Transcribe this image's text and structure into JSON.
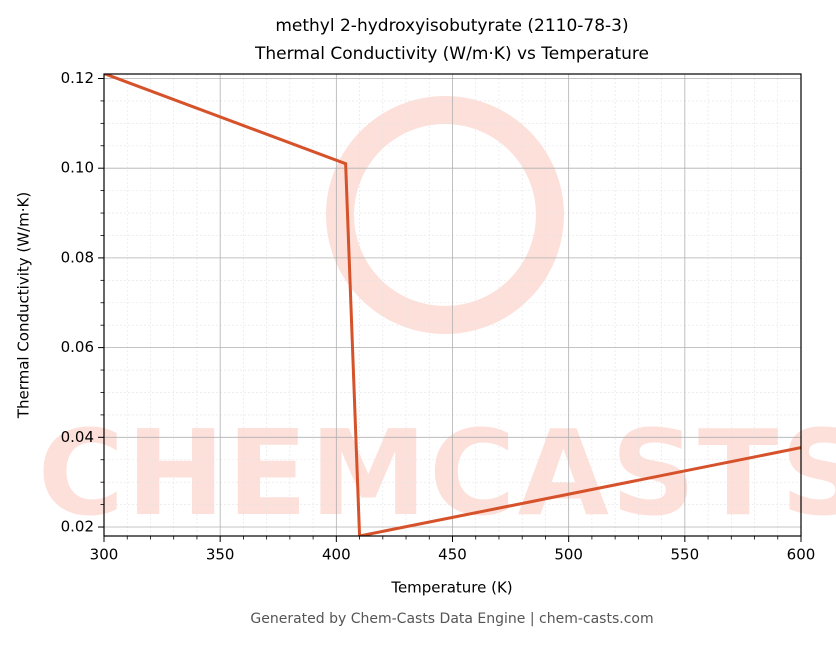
{
  "chart_data": {
    "type": "line",
    "title": [
      "methyl 2-hydroxyisobutyrate (2110-78-3)",
      "Thermal Conductivity (W/m·K) vs Temperature"
    ],
    "x_label": "Temperature (K)",
    "y_label": "Thermal Conductivity (W/m·K)",
    "watermark": "CHEMCASTS",
    "footer": "Generated by Chem-Casts Data Engine | chem-casts.com",
    "x": [
      300,
      404,
      410,
      600
    ],
    "series": [
      {
        "name": "Thermal Conductivity",
        "color": "#d6522a",
        "values": [
          0.1211,
          0.101,
          0.018,
          0.0377
        ]
      }
    ],
    "xlim": [
      300,
      600
    ],
    "xticks": [
      300,
      350,
      400,
      450,
      500,
      550,
      600
    ],
    "ylim": [
      0.018,
      0.121
    ],
    "yticks": [
      {
        "value": 0.02,
        "label": "0.02"
      },
      {
        "value": 0.04,
        "label": "0.04"
      },
      {
        "value": 0.06,
        "label": "0.06"
      },
      {
        "value": 0.08,
        "label": "0.08"
      },
      {
        "value": 0.1,
        "label": "0.10"
      },
      {
        "value": 0.12,
        "label": "0.12"
      }
    ],
    "xminorticks": [
      310,
      320,
      330,
      340,
      360,
      370,
      380,
      390,
      410,
      420,
      430,
      440,
      460,
      470,
      480,
      490,
      510,
      520,
      530,
      540,
      560,
      570,
      580,
      590
    ],
    "yminorticks": [
      0.025,
      0.03,
      0.035,
      0.045,
      0.05,
      0.055,
      0.065,
      0.07,
      0.075,
      0.085,
      0.09,
      0.095,
      0.105,
      0.11,
      0.115
    ],
    "grid": true
  }
}
